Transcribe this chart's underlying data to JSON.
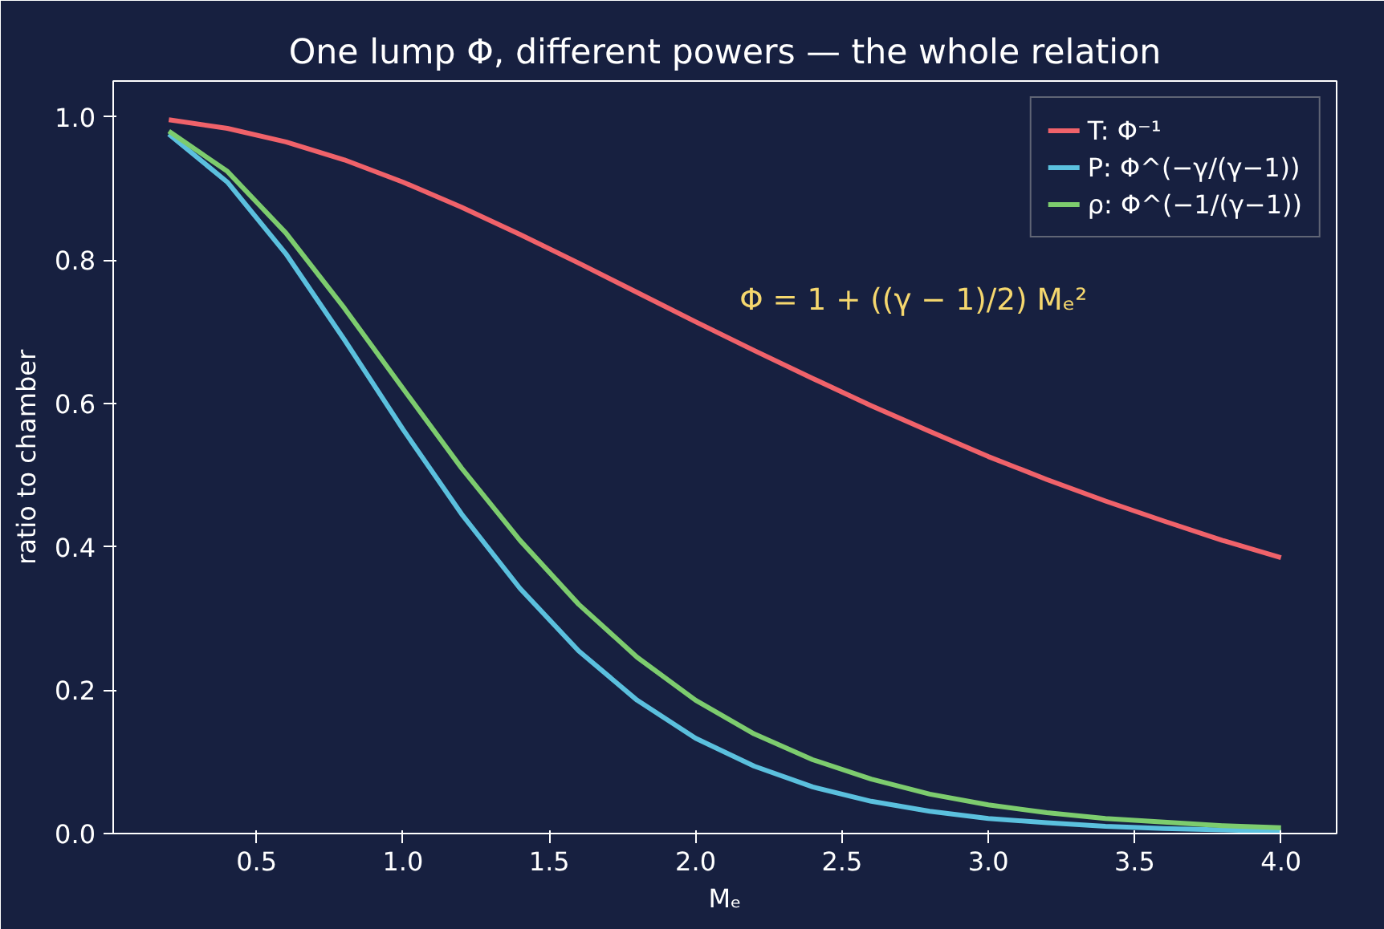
{
  "chart_data": {
    "type": "line",
    "title": "One lump Φ, different powers — the whole relation",
    "xlabel": "Mₑ",
    "ylabel": "ratio to chamber",
    "annotations": [
      "Φ = 1 + ((γ − 1)/2) Mₑ²"
    ],
    "x": [
      0.2,
      0.4,
      0.6,
      0.8,
      1.0,
      1.2,
      1.4,
      1.6,
      1.8,
      2.0,
      2.2,
      2.4,
      2.6,
      2.8,
      3.0,
      3.2,
      3.4,
      3.6,
      3.8,
      4.0
    ],
    "series": [
      {
        "name": "T: Φ⁻¹",
        "color": "#f0626a",
        "values": [
          0.996,
          0.984,
          0.965,
          0.94,
          0.909,
          0.874,
          0.836,
          0.796,
          0.755,
          0.714,
          0.674,
          0.635,
          0.597,
          0.561,
          0.526,
          0.494,
          0.464,
          0.436,
          0.409,
          0.385
        ]
      },
      {
        "name": "P: Φ^(−γ/(γ−1))",
        "color": "#5bc0de",
        "values": [
          0.976,
          0.909,
          0.809,
          0.689,
          0.564,
          0.446,
          0.342,
          0.255,
          0.186,
          0.133,
          0.094,
          0.065,
          0.045,
          0.031,
          0.021,
          0.015,
          0.01,
          0.007,
          0.005,
          0.003
        ]
      },
      {
        "name": "ρ: Φ^(−1/(γ−1))",
        "color": "#7dcc6e",
        "values": [
          0.98,
          0.924,
          0.838,
          0.733,
          0.621,
          0.51,
          0.409,
          0.32,
          0.246,
          0.186,
          0.139,
          0.103,
          0.076,
          0.055,
          0.04,
          0.029,
          0.021,
          0.016,
          0.011,
          0.008
        ]
      }
    ],
    "xlim": [
      0.01,
      4.19
    ],
    "ylim": [
      0,
      1.05
    ],
    "xticks": [
      0.5,
      {
        "value": 1,
        "label": "1.0"
      },
      1.5,
      {
        "value": 2,
        "label": "2.0"
      },
      2.5,
      {
        "value": 3,
        "label": "3.0"
      },
      3.5,
      {
        "value": 4,
        "label": "4.0"
      }
    ],
    "yticks": [
      {
        "value": 0,
        "label": "0.0"
      },
      0.2,
      0.4,
      0.6,
      0.8,
      {
        "value": 1,
        "label": "1.0"
      }
    ],
    "grid": false,
    "legend": "top right",
    "line_style": "solid",
    "marker": "none"
  }
}
